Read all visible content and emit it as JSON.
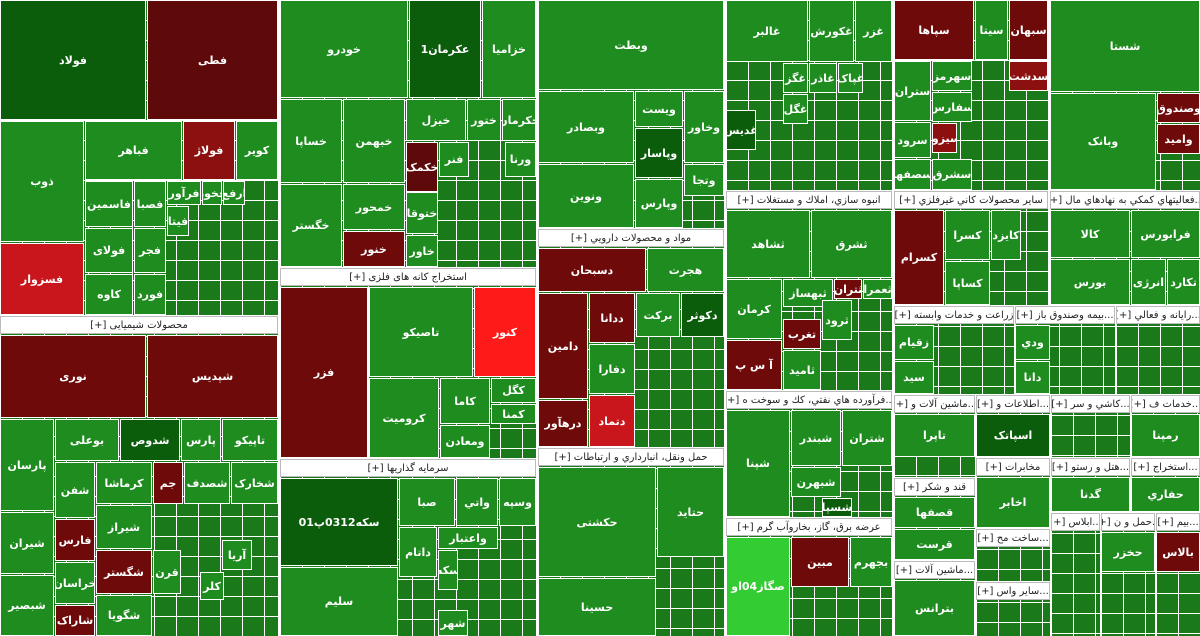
{
  "sectors": [
    {
      "tiles": [
        {
          "label": "فولاد",
          "color": "#0b5c0b"
        },
        {
          "label": "فطی",
          "color": "#5e0a0a"
        },
        {
          "label": "ذوب",
          "color": "#1e8c1e"
        },
        {
          "label": "فسزوار",
          "color": "#c8161c"
        },
        {
          "label": "فباهر",
          "color": "#1e8c1e"
        },
        {
          "label": "فولاژ",
          "color": "#8c1010"
        },
        {
          "label": "کویر",
          "color": "#1e8c1e"
        },
        {
          "label": "فاسمین",
          "color": "#1e8c1e"
        },
        {
          "label": "فولای",
          "color": "#1e8c1e"
        },
        {
          "label": "کاوه",
          "color": "#1e8c1e"
        },
        {
          "label": "فصبا",
          "color": "#1e8c1e"
        },
        {
          "label": "فجر",
          "color": "#1e8c1e"
        },
        {
          "label": "فورد",
          "color": "#1e8c1e"
        },
        {
          "label": "فرآور",
          "color": "#1e8c1e"
        },
        {
          "label": "فخوز",
          "color": "#1e8c1e"
        },
        {
          "label": "ارفع",
          "color": "#1e8c1e"
        },
        {
          "label": "فیتا",
          "color": "#1e8c1e"
        }
      ]
    },
    {
      "header": "محصولات شیمیایی [+]",
      "tiles": [
        {
          "label": "نوری",
          "color": "#6e0a0a"
        },
        {
          "label": "شپدیس",
          "color": "#6e0a0a"
        },
        {
          "label": "پارسان",
          "color": "#1e8c1e"
        },
        {
          "label": "شیران",
          "color": "#1e8c1e"
        },
        {
          "label": "شبصیر",
          "color": "#1e8c1e"
        },
        {
          "label": "بوعلی",
          "color": "#1e8c1e"
        },
        {
          "label": "شدوص",
          "color": "#0b5c0b"
        },
        {
          "label": "پارس",
          "color": "#1e8c1e"
        },
        {
          "label": "تاپیکو",
          "color": "#1e8c1e"
        },
        {
          "label": "شفن",
          "color": "#1e8c1e"
        },
        {
          "label": "کرماشا",
          "color": "#1e8c1e"
        },
        {
          "label": "جم",
          "color": "#6e0a0a"
        },
        {
          "label": "شصدف",
          "color": "#1e8c1e"
        },
        {
          "label": "شخارک",
          "color": "#1e8c1e"
        },
        {
          "label": "فارس",
          "color": "#6e0a0a"
        },
        {
          "label": "خراسان",
          "color": "#1e8c1e"
        },
        {
          "label": "شاراک",
          "color": "#6e0a0a"
        },
        {
          "label": "شیراز",
          "color": "#1e8c1e"
        },
        {
          "label": "شگستر",
          "color": "#6e0a0a"
        },
        {
          "label": "شگویا",
          "color": "#1e8c1e"
        },
        {
          "label": "قرن",
          "color": "#1e8c1e"
        },
        {
          "label": "آریا",
          "color": "#1e8c1e"
        },
        {
          "label": "کلر",
          "color": "#1e8c1e"
        }
      ]
    },
    {
      "tiles": [
        {
          "label": "خودرو",
          "color": "#1e8c1e"
        },
        {
          "label": "عکرمان1",
          "color": "#0b5c0b"
        },
        {
          "label": "خزامیا",
          "color": "#1e8c1e"
        },
        {
          "label": "خساپا",
          "color": "#1e8c1e"
        },
        {
          "label": "خبهمن",
          "color": "#1e8c1e"
        },
        {
          "label": "خگستر",
          "color": "#1e8c1e"
        },
        {
          "label": "خمحور",
          "color": "#1e8c1e"
        },
        {
          "label": "خنور",
          "color": "#6e0a0a"
        },
        {
          "label": "خیزل",
          "color": "#1e8c1e"
        },
        {
          "label": "ختور",
          "color": "#1e8c1e"
        },
        {
          "label": "خکرمان",
          "color": "#1e8c1e"
        },
        {
          "label": "ختوقا",
          "color": "#1e8c1e"
        },
        {
          "label": "خکمک",
          "color": "#5e0a0a"
        },
        {
          "label": "فنر",
          "color": "#1e8c1e"
        },
        {
          "label": "خاور",
          "color": "#1e8c1e"
        },
        {
          "label": "ورنا",
          "color": "#1e8c1e"
        }
      ]
    },
    {
      "header": "استخراج کانه های فلزی [+]",
      "tiles": [
        {
          "label": "فزر",
          "color": "#6e0a0a"
        },
        {
          "label": "تاصیکو",
          "color": "#1e8c1e"
        },
        {
          "label": "کنور",
          "color": "#ff1a1a"
        },
        {
          "label": "کرومیت",
          "color": "#1e8c1e"
        },
        {
          "label": "کاما",
          "color": "#1e8c1e"
        },
        {
          "label": "کگل",
          "color": "#1e8c1e"
        },
        {
          "label": "کمنا",
          "color": "#1e8c1e"
        },
        {
          "label": "ومعادن",
          "color": "#1e8c1e"
        }
      ]
    },
    {
      "header": "سرمایه گذاریها [+]",
      "tiles": [
        {
          "label": "سکه0312پ01",
          "color": "#0b5c0b"
        },
        {
          "label": "سلیم",
          "color": "#1e8c1e"
        },
        {
          "label": "صبا",
          "color": "#1e8c1e"
        },
        {
          "label": "واتي",
          "color": "#1e8c1e"
        },
        {
          "label": "وسپه",
          "color": "#1e8c1e"
        },
        {
          "label": "داتام",
          "color": "#1e8c1e"
        },
        {
          "label": "واعتبار",
          "color": "#1e8c1e"
        },
        {
          "label": "سکه",
          "color": "#1e8c1e"
        },
        {
          "label": "شهر",
          "color": "#1e8c1e"
        }
      ]
    },
    {
      "tiles": [
        {
          "label": "وبطت",
          "color": "#1e8c1e"
        },
        {
          "label": "وبصادر",
          "color": "#1e8c1e"
        },
        {
          "label": "ویست",
          "color": "#1e8c1e"
        },
        {
          "label": "وخاور",
          "color": "#1e8c1e"
        },
        {
          "label": "ونوین",
          "color": "#1e8c1e"
        },
        {
          "label": "وپاسار",
          "color": "#0b5c0b"
        },
        {
          "label": "وپارس",
          "color": "#1e8c1e"
        },
        {
          "label": "وتجا",
          "color": "#1e8c1e"
        }
      ]
    },
    {
      "header": "مواد و محصولات دارويي [+]",
      "tiles": [
        {
          "label": "دسبحان",
          "color": "#6e0a0a"
        },
        {
          "label": "هجرت",
          "color": "#1e8c1e"
        },
        {
          "label": "دامین",
          "color": "#6e0a0a"
        },
        {
          "label": "ددانا",
          "color": "#6e0a0a"
        },
        {
          "label": "برکت",
          "color": "#1e8c1e"
        },
        {
          "label": "دکوثر",
          "color": "#0b5c0b"
        },
        {
          "label": "دفارا",
          "color": "#1e8c1e"
        },
        {
          "label": "درهآور",
          "color": "#6e0a0a"
        },
        {
          "label": "دتماد",
          "color": "#c8161c"
        }
      ]
    },
    {
      "header": "حمل ونقل، انبارداري و ارتباطات [+]",
      "tiles": [
        {
          "label": "حکشتی",
          "color": "#1e8c1e"
        },
        {
          "label": "حتاید",
          "color": "#1e8c1e"
        },
        {
          "label": "حسینا",
          "color": "#1e8c1e"
        }
      ]
    },
    {
      "tiles": [
        {
          "label": "غالبر",
          "color": "#1e8c1e"
        },
        {
          "label": "غکورش",
          "color": "#1e8c1e"
        },
        {
          "label": "غزر",
          "color": "#1e8c1e"
        },
        {
          "label": "غگز",
          "color": "#1e8c1e"
        },
        {
          "label": "غاذر",
          "color": "#1e8c1e"
        },
        {
          "label": "غپاک",
          "color": "#1e8c1e"
        },
        {
          "label": "غگل",
          "color": "#1e8c1e"
        },
        {
          "label": "غدیس",
          "color": "#0b5c0b"
        }
      ]
    },
    {
      "header": "انبوه سازي، املاك و مستغلات [+]",
      "tiles": [
        {
          "label": "ثشاهد",
          "color": "#1e8c1e"
        },
        {
          "label": "ثشرق",
          "color": "#1e8c1e"
        },
        {
          "label": "کرمان",
          "color": "#1e8c1e"
        },
        {
          "label": "ثبهساز",
          "color": "#1e8c1e"
        },
        {
          "label": "ثتران",
          "color": "#6e0a0a"
        },
        {
          "label": "ثعمرا",
          "color": "#1e8c1e"
        },
        {
          "label": "تغرب",
          "color": "#6e0a0a"
        },
        {
          "label": "آ س پ",
          "color": "#6e0a0a"
        },
        {
          "label": "ثامید",
          "color": "#1e8c1e"
        },
        {
          "label": "ثرود",
          "color": "#1e8c1e"
        }
      ]
    },
    {
      "header": "...فرآورده هاي نفتي، كك و سوخت ه [+]",
      "tiles": [
        {
          "label": "شپنا",
          "color": "#1e8c1e"
        },
        {
          "label": "شبندر",
          "color": "#1e8c1e"
        },
        {
          "label": "شتران",
          "color": "#1e8c1e"
        },
        {
          "label": "شبهرن",
          "color": "#1e8c1e"
        },
        {
          "label": "شسپا",
          "color": "#0b5c0b"
        }
      ]
    },
    {
      "header": "عرضه برق، گاز، بخاروآب گرم [+]",
      "tiles": [
        {
          "label": "صگاز04او",
          "color": "#33cc33"
        },
        {
          "label": "مبین",
          "color": "#6e0a0a"
        },
        {
          "label": "بجهرم",
          "color": "#1e8c1e"
        }
      ]
    },
    {
      "tiles": [
        {
          "label": "سپاها",
          "color": "#6e0a0a"
        },
        {
          "label": "سیتا",
          "color": "#1e8c1e"
        },
        {
          "label": "سبهان",
          "color": "#6e0a0a"
        },
        {
          "label": "سهرمز",
          "color": "#1e8c1e"
        },
        {
          "label": "ستران",
          "color": "#1e8c1e"
        },
        {
          "label": "سدشت",
          "color": "#8c1010"
        },
        {
          "label": "سفارس",
          "color": "#1e8c1e"
        },
        {
          "label": "سرود",
          "color": "#1e8c1e"
        },
        {
          "label": "سیزوا",
          "color": "#8c1010"
        },
        {
          "label": "سصفها",
          "color": "#1e8c1e"
        },
        {
          "label": "سشرق",
          "color": "#1e8c1e"
        }
      ]
    },
    {
      "header": "ساير محصولات كاني غيرفلزي [+]",
      "tiles": [
        {
          "label": "کسرام",
          "color": "#6e0a0a"
        },
        {
          "label": "کسرا",
          "color": "#1e8c1e"
        },
        {
          "label": "کایزد",
          "color": "#1e8c1e"
        },
        {
          "label": "کساپا",
          "color": "#1e8c1e"
        }
      ]
    },
    {
      "header": "زراعت و خدمات وابسته [+]",
      "tiles": [
        {
          "label": "زقیام",
          "color": "#1e8c1e"
        },
        {
          "label": "سید",
          "color": "#1e8c1e"
        }
      ]
    },
    {
      "header": "...بيمه وصندوق باز [+]",
      "tiles": [
        {
          "label": "ودي",
          "color": "#1e8c1e"
        },
        {
          "label": "دانا",
          "color": "#1e8c1e"
        }
      ]
    },
    {
      "header": "...رايانه و فعالي [+]",
      "tiles": []
    },
    {
      "header": "...ماشين آلات و [+]",
      "tiles": [
        {
          "label": "تاپرا",
          "color": "#1e8c1e"
        }
      ]
    },
    {
      "header": "...اطلاعات و [+]",
      "tiles": [
        {
          "label": "اسپاتک",
          "color": "#0b5c0b"
        }
      ]
    },
    {
      "header": "...کاشي و سر [+]",
      "tiles": []
    },
    {
      "header": "...خدمات ف [+]",
      "tiles": [
        {
          "label": "رمپنا",
          "color": "#1e8c1e"
        }
      ]
    },
    {
      "header": "قند و شکر [+]",
      "tiles": [
        {
          "label": "قصفها",
          "color": "#1e8c1e"
        },
        {
          "label": "قرست",
          "color": "#1e8c1e"
        }
      ]
    },
    {
      "header": "مخابرات [+]",
      "tiles": [
        {
          "label": "اخابر",
          "color": "#1e8c1e"
        }
      ]
    },
    {
      "header": "...هتل و رستو [+]",
      "tiles": [
        {
          "label": "گدنا",
          "color": "#1e8c1e"
        }
      ]
    },
    {
      "header": "...استخراج [+]",
      "tiles": [
        {
          "label": "حفاري",
          "color": "#1e8c1e"
        }
      ]
    },
    {
      "header": "...ماشين آلات [+]",
      "tiles": [
        {
          "label": "بترانس",
          "color": "#1e8c1e"
        }
      ]
    },
    {
      "header": "...ساخت مح [+]",
      "tiles": []
    },
    {
      "header": "...سایر واس [+]",
      "tiles": []
    },
    {
      "header": "...ابلاس [+]",
      "tiles": []
    },
    {
      "header": "...حمل و ن [+]",
      "tiles": [
        {
          "label": "حخزر",
          "color": "#1e8c1e"
        }
      ]
    },
    {
      "header": "...بیم [+]",
      "tiles": [
        {
          "label": "بالاس",
          "color": "#6e0a0a"
        }
      ]
    },
    {
      "tiles": [
        {
          "label": "شستا",
          "color": "#1e8c1e"
        },
        {
          "label": "وبانک",
          "color": "#1e8c1e"
        },
        {
          "label": "وصندوق",
          "color": "#6e0a0a"
        },
        {
          "label": "واميد",
          "color": "#6e0a0a"
        }
      ]
    },
    {
      "header": "...فعاليتهاي كمكي به نهادهاي مال [+]",
      "tiles": [
        {
          "label": "کالا",
          "color": "#1e8c1e"
        },
        {
          "label": "فرابورس",
          "color": "#1e8c1e"
        },
        {
          "label": "بورس",
          "color": "#1e8c1e"
        },
        {
          "label": "انرژی",
          "color": "#1e8c1e"
        },
        {
          "label": "تکارد",
          "color": "#1e8c1e"
        }
      ]
    }
  ]
}
